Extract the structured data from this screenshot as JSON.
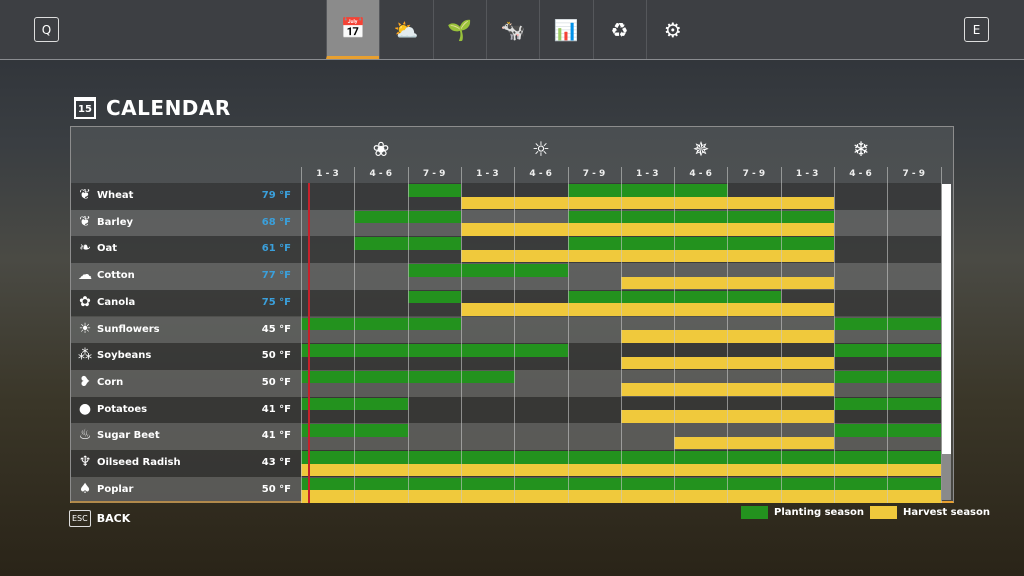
{
  "topbar": {
    "left_key": "Q",
    "right_key": "E",
    "tabs": [
      {
        "icon": "calendar-icon",
        "glyph": "📅",
        "active": true
      },
      {
        "icon": "weather-icon",
        "glyph": "⛅"
      },
      {
        "icon": "seedling-icon",
        "glyph": "🌱"
      },
      {
        "icon": "cow-icon",
        "glyph": "🐄"
      },
      {
        "icon": "statistics-icon",
        "glyph": "📊"
      },
      {
        "icon": "cycle-icon",
        "glyph": "♻"
      },
      {
        "icon": "settings-icon",
        "glyph": "⚙"
      }
    ]
  },
  "page": {
    "title": "CALENDAR",
    "calendar_icon_text": "15"
  },
  "footer": {
    "esc_key": "ESC",
    "back_label": "BACK"
  },
  "legend": {
    "planting": "Planting season",
    "harvest": "Harvest season"
  },
  "colors": {
    "planting": "#23921e",
    "harvest": "#f0c93c",
    "temp_warm": "#3aa0dc",
    "current_marker": "#c8202a"
  },
  "chart_data": {
    "type": "table",
    "seasons": [
      {
        "name": "spring",
        "glyph": "❀"
      },
      {
        "name": "summer",
        "glyph": "☼"
      },
      {
        "name": "autumn",
        "glyph": "✵"
      },
      {
        "name": "winter",
        "glyph": "❄"
      }
    ],
    "periods": [
      "1 - 3",
      "4 - 6",
      "7 - 9",
      "1 - 3",
      "4 - 6",
      "7 - 9",
      "1 - 3",
      "4 - 6",
      "7 - 9",
      "1 - 3",
      "4 - 6",
      "7 - 9"
    ],
    "current_period": 1.13,
    "crops": [
      {
        "name": "Wheat",
        "icon": "wheat-icon",
        "glyph": "❦",
        "temp": "79 °F",
        "warm": true,
        "planting": [
          3,
          6,
          7,
          8
        ],
        "harvest": [
          4,
          5,
          6,
          7,
          8,
          9,
          10
        ]
      },
      {
        "name": "Barley",
        "icon": "barley-icon",
        "glyph": "❦",
        "temp": "68 °F",
        "warm": true,
        "planting": [
          2,
          3,
          6,
          7,
          8,
          9,
          10
        ],
        "harvest": [
          4,
          5,
          6,
          7,
          8,
          9,
          10
        ]
      },
      {
        "name": "Oat",
        "icon": "oat-icon",
        "glyph": "❧",
        "temp": "61 °F",
        "warm": true,
        "planting": [
          2,
          3,
          6,
          7,
          8,
          9,
          10
        ],
        "harvest": [
          4,
          5,
          6,
          7,
          8,
          9,
          10
        ]
      },
      {
        "name": "Cotton",
        "icon": "cotton-icon",
        "glyph": "☁",
        "temp": "77 °F",
        "warm": true,
        "planting": [
          3,
          4,
          5
        ],
        "harvest": [
          7,
          8,
          9,
          10
        ]
      },
      {
        "name": "Canola",
        "icon": "canola-icon",
        "glyph": "✿",
        "temp": "75 °F",
        "warm": true,
        "planting": [
          3,
          6,
          7,
          8,
          9
        ],
        "harvest": [
          4,
          5,
          6,
          7,
          8,
          9,
          10
        ]
      },
      {
        "name": "Sunflowers",
        "icon": "sunflower-icon",
        "glyph": "☀",
        "temp": "45 °F",
        "warm": false,
        "planting": [
          1,
          2,
          3,
          11,
          12
        ],
        "harvest": [
          7,
          8,
          9,
          10
        ]
      },
      {
        "name": "Soybeans",
        "icon": "soybean-icon",
        "glyph": "⁂",
        "temp": "50 °F",
        "warm": false,
        "planting": [
          1,
          2,
          3,
          4,
          5,
          11,
          12
        ],
        "harvest": [
          7,
          8,
          9,
          10
        ]
      },
      {
        "name": "Corn",
        "icon": "corn-icon",
        "glyph": "❥",
        "temp": "50 °F",
        "warm": false,
        "planting": [
          1,
          2,
          3,
          4,
          11,
          12
        ],
        "harvest": [
          7,
          8,
          9,
          10
        ]
      },
      {
        "name": "Potatoes",
        "icon": "potato-icon",
        "glyph": "●",
        "temp": "41 °F",
        "warm": false,
        "planting": [
          1,
          2,
          11,
          12
        ],
        "harvest": [
          7,
          8,
          9,
          10
        ]
      },
      {
        "name": "Sugar Beet",
        "icon": "sugar-beet-icon",
        "glyph": "♨",
        "temp": "41 °F",
        "warm": false,
        "planting": [
          1,
          2,
          11,
          12
        ],
        "harvest": [
          8,
          9,
          10
        ]
      },
      {
        "name": "Oilseed Radish",
        "icon": "oilseed-radish-icon",
        "glyph": "♆",
        "temp": "43 °F",
        "warm": false,
        "planting": [
          1,
          2,
          3,
          4,
          5,
          6,
          7,
          8,
          9,
          10,
          11,
          12
        ],
        "harvest": [
          1,
          2,
          3,
          4,
          5,
          6,
          7,
          8,
          9,
          10,
          11,
          12
        ]
      },
      {
        "name": "Poplar",
        "icon": "poplar-icon",
        "glyph": "♠",
        "temp": "50 °F",
        "warm": false,
        "planting": [
          1,
          2,
          3,
          4,
          5,
          6,
          7,
          8,
          9,
          10,
          11,
          12
        ],
        "harvest": [
          1,
          2,
          3,
          4,
          5,
          6,
          7,
          8,
          9,
          10,
          11,
          12
        ]
      }
    ]
  }
}
